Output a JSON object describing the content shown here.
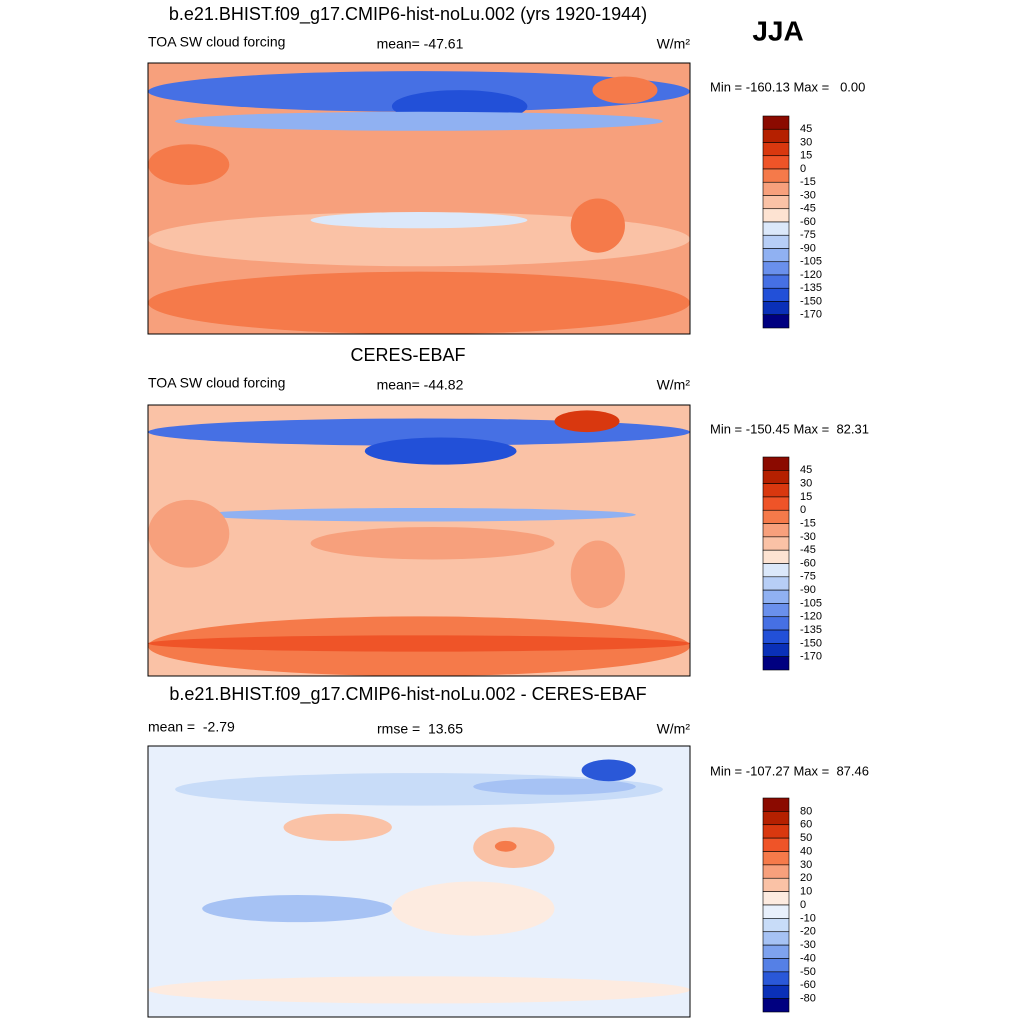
{
  "season": "JJA",
  "panels": [
    {
      "title": "b.e21.BHIST.f09_g17.CMIP6-hist-noLu.002 (yrs 1920-1944)",
      "left": "TOA SW cloud forcing",
      "center": "mean= -47.61",
      "units": "W/m²",
      "minmax": "Min = -160.13 Max =   0.00",
      "colorbar": {
        "labels": [
          "45",
          "30",
          "15",
          "0",
          "-15",
          "-30",
          "-45",
          "-60",
          "-75",
          "-90",
          "-105",
          "-120",
          "-135",
          "-150",
          "-170"
        ],
        "colors": [
          "#8b0a00",
          "#b52000",
          "#d9380f",
          "#ef5428",
          "#f57a4a",
          "#f7a07c",
          "#fac2a6",
          "#fde3d2",
          "#dbe8fa",
          "#b7cef6",
          "#90b1f2",
          "#6a90ec",
          "#4670e4",
          "#2250d8",
          "#0a30b8",
          "#000080"
        ]
      }
    },
    {
      "title": "CERES-EBAF",
      "left": "TOA SW cloud forcing",
      "center": "mean= -44.82",
      "units": "W/m²",
      "minmax": "Min = -150.45 Max =  82.31",
      "colorbar": {
        "labels": [
          "45",
          "30",
          "15",
          "0",
          "-15",
          "-30",
          "-45",
          "-60",
          "-75",
          "-90",
          "-105",
          "-120",
          "-135",
          "-150",
          "-170"
        ],
        "colors": [
          "#8b0a00",
          "#b52000",
          "#d9380f",
          "#ef5428",
          "#f57a4a",
          "#f7a07c",
          "#fac2a6",
          "#fde3d2",
          "#dbe8fa",
          "#b7cef6",
          "#90b1f2",
          "#6a90ec",
          "#4670e4",
          "#2250d8",
          "#0a30b8",
          "#000080"
        ]
      }
    },
    {
      "title": "b.e21.BHIST.f09_g17.CMIP6-hist-noLu.002 - CERES-EBAF",
      "left": "mean =  -2.79",
      "center": "rmse =  13.65",
      "units": "W/m²",
      "minmax": "Min = -107.27 Max =  87.46",
      "colorbar": {
        "labels": [
          "80",
          "60",
          "50",
          "40",
          "30",
          "20",
          "10",
          "0",
          "-10",
          "-20",
          "-30",
          "-40",
          "-50",
          "-60",
          "-80"
        ],
        "colors": [
          "#8b0a00",
          "#b52000",
          "#d9380f",
          "#ef5428",
          "#f57a4a",
          "#f7a07c",
          "#fac2a6",
          "#fdebe0",
          "#e8f0fc",
          "#c8dcf8",
          "#a6c2f4",
          "#7ea2ee",
          "#5580e6",
          "#2a58d8",
          "#0a30b8",
          "#000080"
        ]
      }
    }
  ]
}
